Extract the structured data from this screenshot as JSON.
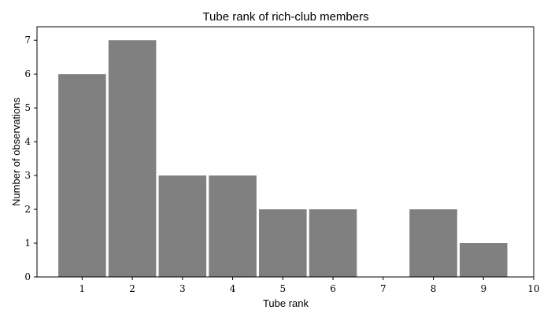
{
  "chart_data": {
    "type": "bar",
    "title": "Tube rank of rich-club members",
    "xlabel": "Tube rank",
    "ylabel": "Number of observations",
    "categories": [
      1,
      2,
      3,
      4,
      5,
      6,
      7,
      8,
      9
    ],
    "values": [
      6,
      7,
      3,
      3,
      2,
      2,
      0,
      2,
      1
    ],
    "xlim": [
      0.1,
      10
    ],
    "ylim": [
      0,
      7.4
    ],
    "xticks": [
      1,
      2,
      3,
      4,
      5,
      6,
      7,
      8,
      9,
      10
    ],
    "yticks": [
      0,
      1,
      2,
      3,
      4,
      5,
      6,
      7
    ],
    "bar_color": "#808080",
    "grid": false
  }
}
